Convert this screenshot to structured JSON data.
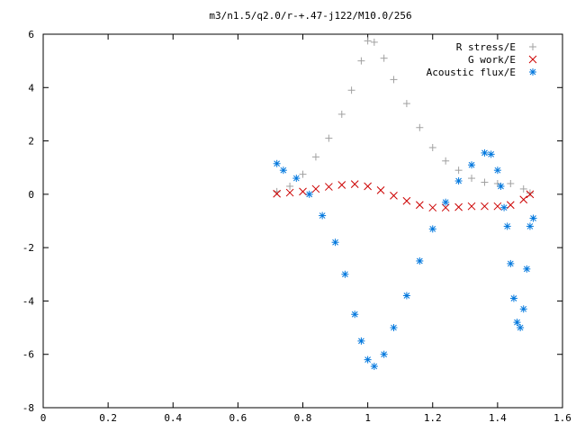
{
  "chart_data": {
    "type": "scatter",
    "title": "m3/n1.5/q2.0/r-+.47-j122/M10.0/256",
    "xlabel": "",
    "ylabel": "",
    "xlim": [
      0,
      1.6
    ],
    "ylim": [
      -8,
      6
    ],
    "xticks": [
      "0",
      "0.2",
      "0.4",
      "0.6",
      "0.8",
      "1",
      "1.2",
      "1.4",
      "1.6"
    ],
    "yticks": [
      "6",
      "4",
      "2",
      "0",
      "-2",
      "-4",
      "-6",
      "-8"
    ],
    "grid": false,
    "legend_position": "top-right",
    "series": [
      {
        "name": "R stress/E",
        "marker": "plus",
        "color": "#a0a0a0",
        "points": [
          [
            0.72,
            0.1
          ],
          [
            0.76,
            0.3
          ],
          [
            0.8,
            0.75
          ],
          [
            0.84,
            1.4
          ],
          [
            0.88,
            2.1
          ],
          [
            0.92,
            3.0
          ],
          [
            0.95,
            3.9
          ],
          [
            0.98,
            5.0
          ],
          [
            1.0,
            5.75
          ],
          [
            1.02,
            5.7
          ],
          [
            1.05,
            5.1
          ],
          [
            1.08,
            4.3
          ],
          [
            1.12,
            3.4
          ],
          [
            1.16,
            2.5
          ],
          [
            1.2,
            1.75
          ],
          [
            1.24,
            1.25
          ],
          [
            1.28,
            0.9
          ],
          [
            1.32,
            0.6
          ],
          [
            1.36,
            0.45
          ],
          [
            1.4,
            0.4
          ],
          [
            1.44,
            0.4
          ],
          [
            1.48,
            0.2
          ],
          [
            1.5,
            0.05
          ]
        ]
      },
      {
        "name": "G work/E",
        "marker": "cross",
        "color": "#cc0000",
        "points": [
          [
            0.72,
            0.02
          ],
          [
            0.76,
            0.06
          ],
          [
            0.8,
            0.1
          ],
          [
            0.84,
            0.2
          ],
          [
            0.88,
            0.28
          ],
          [
            0.92,
            0.35
          ],
          [
            0.96,
            0.38
          ],
          [
            1.0,
            0.3
          ],
          [
            1.04,
            0.15
          ],
          [
            1.08,
            -0.05
          ],
          [
            1.12,
            -0.25
          ],
          [
            1.16,
            -0.4
          ],
          [
            1.2,
            -0.5
          ],
          [
            1.24,
            -0.5
          ],
          [
            1.28,
            -0.48
          ],
          [
            1.32,
            -0.45
          ],
          [
            1.36,
            -0.45
          ],
          [
            1.4,
            -0.45
          ],
          [
            1.44,
            -0.4
          ],
          [
            1.48,
            -0.2
          ],
          [
            1.5,
            0.0
          ]
        ]
      },
      {
        "name": "Acoustic flux/E",
        "marker": "star",
        "color": "#0077dd",
        "points": [
          [
            0.72,
            1.15
          ],
          [
            0.74,
            0.9
          ],
          [
            0.78,
            0.6
          ],
          [
            0.82,
            0.0
          ],
          [
            0.86,
            -0.8
          ],
          [
            0.9,
            -1.8
          ],
          [
            0.93,
            -3.0
          ],
          [
            0.96,
            -4.5
          ],
          [
            0.98,
            -5.5
          ],
          [
            1.0,
            -6.2
          ],
          [
            1.02,
            -6.45
          ],
          [
            1.05,
            -6.0
          ],
          [
            1.08,
            -5.0
          ],
          [
            1.12,
            -3.8
          ],
          [
            1.16,
            -2.5
          ],
          [
            1.2,
            -1.3
          ],
          [
            1.24,
            -0.3
          ],
          [
            1.28,
            0.5
          ],
          [
            1.32,
            1.1
          ],
          [
            1.36,
            1.55
          ],
          [
            1.38,
            1.5
          ],
          [
            1.4,
            0.9
          ],
          [
            1.41,
            0.3
          ],
          [
            1.42,
            -0.5
          ],
          [
            1.43,
            -1.2
          ],
          [
            1.44,
            -2.6
          ],
          [
            1.45,
            -3.9
          ],
          [
            1.46,
            -4.8
          ],
          [
            1.47,
            -5.0
          ],
          [
            1.48,
            -4.3
          ],
          [
            1.49,
            -2.8
          ],
          [
            1.5,
            -1.2
          ],
          [
            1.51,
            -0.9
          ]
        ]
      }
    ]
  }
}
